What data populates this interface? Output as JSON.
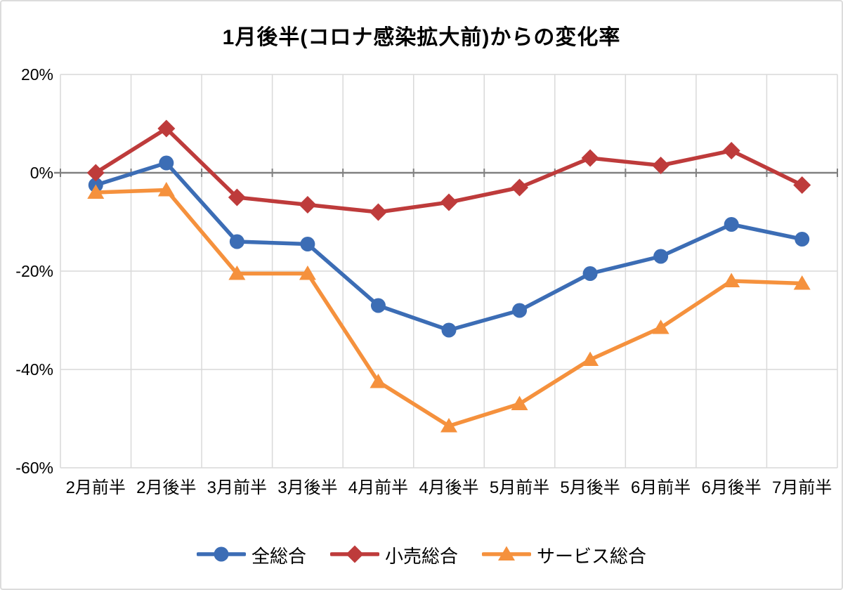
{
  "chart": {
    "title": "1月後半(コロナ感染拡大前)からの変化率"
  },
  "chart_data": {
    "type": "line",
    "title": "1月後半(コロナ感染拡大前)からの変化率",
    "categories": [
      "2月前半",
      "2月後半",
      "3月前半",
      "3月後半",
      "4月前半",
      "4月後半",
      "5月前半",
      "5月後半",
      "6月前半",
      "6月後半",
      "7月前半"
    ],
    "series": [
      {
        "name": "全総合",
        "color": "#3C6DB5",
        "marker": "circle",
        "values": [
          -2.5,
          2,
          -14,
          -14.5,
          -27,
          -32,
          -28,
          -20.5,
          -17,
          -10.5,
          -13.5
        ]
      },
      {
        "name": "小売総合",
        "color": "#BE3B3B",
        "marker": "diamond",
        "values": [
          0,
          9,
          -5,
          -6.5,
          -8,
          -6,
          -3,
          3,
          1.5,
          4.5,
          -2.5
        ]
      },
      {
        "name": "サービス総合",
        "color": "#F5913D",
        "marker": "triangle",
        "values": [
          -4,
          -3.5,
          -20.5,
          -20.5,
          -42.5,
          -51.5,
          -47,
          -38,
          -31.5,
          -22,
          -22.5
        ]
      }
    ],
    "ylim": [
      -60,
      20
    ],
    "yticks": {
      "values": [
        20,
        0,
        -20,
        -40,
        -60
      ],
      "labels": [
        "20%",
        "0%",
        "-20%",
        "-40%",
        "-60%"
      ]
    },
    "grid": true,
    "legend_position": "bottom",
    "colors": {
      "axis": "#808080",
      "gridline": "#D9D9D9",
      "text": "#000000"
    }
  }
}
